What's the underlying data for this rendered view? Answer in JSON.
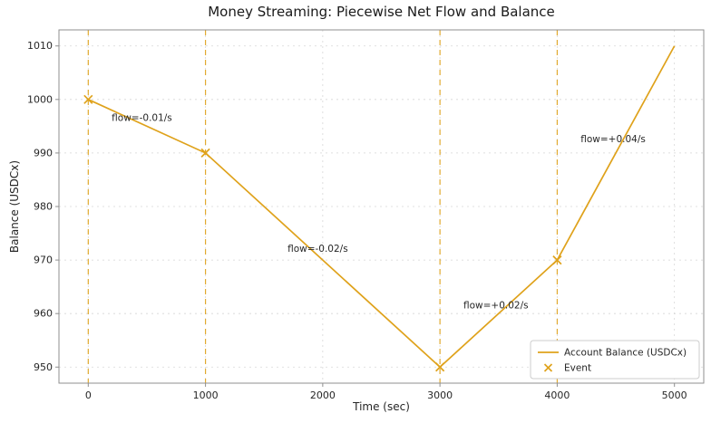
{
  "chart_data": {
    "type": "line",
    "title": "Money Streaming: Piecewise Net Flow and Balance",
    "xlabel": "Time (sec)",
    "ylabel": "Balance (USDCx)",
    "xlim": [
      -250,
      5250
    ],
    "ylim": [
      947,
      1013
    ],
    "x_ticks": [
      0,
      1000,
      2000,
      3000,
      4000,
      5000
    ],
    "y_ticks": [
      950,
      960,
      970,
      980,
      990,
      1000,
      1010
    ],
    "grid": true,
    "series": [
      {
        "name": "Account Balance (USDCx)",
        "x": [
          0,
          1000,
          3000,
          4000,
          5000
        ],
        "y": [
          1000,
          990,
          950,
          970,
          1010
        ]
      }
    ],
    "events": {
      "name": "Event",
      "x": [
        0,
        1000,
        3000,
        4000
      ],
      "y": [
        1000,
        990,
        950,
        970
      ]
    },
    "event_vlines": [
      0,
      1000,
      3000,
      4000
    ],
    "annotations": [
      {
        "text": "flow=-0.01/s",
        "x": 200,
        "y": 996
      },
      {
        "text": "flow=-0.02/s",
        "x": 1700,
        "y": 971.5
      },
      {
        "text": "flow=+0.02/s",
        "x": 3200,
        "y": 961
      },
      {
        "text": "flow=+0.04/s",
        "x": 4200,
        "y": 992
      }
    ],
    "legend": {
      "position": "lower right",
      "entries": [
        {
          "label": "Account Balance (USDCx)",
          "type": "line"
        },
        {
          "label": "Event",
          "type": "marker"
        }
      ]
    },
    "colors": {
      "accent": "#DFA21B",
      "grid": "#d6d6d6",
      "spine": "#8f8f8f",
      "text": "#262626"
    }
  }
}
